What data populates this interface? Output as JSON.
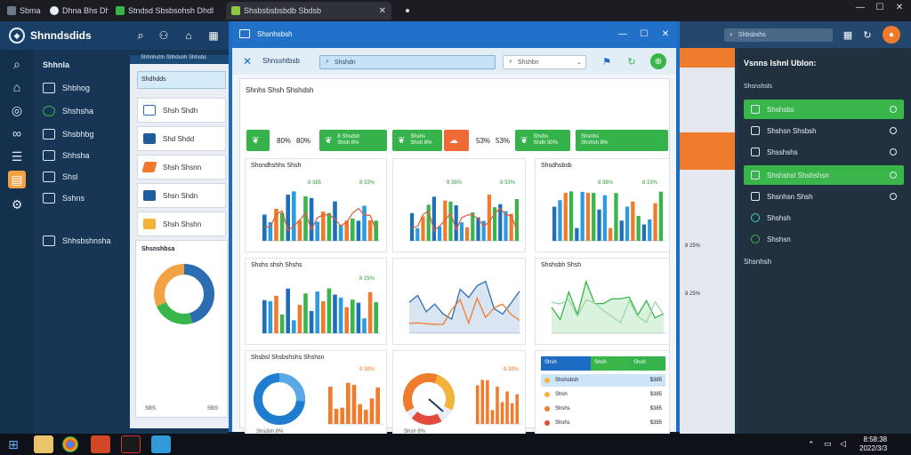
{
  "browser": {
    "tabs": [
      {
        "label": "Sbma"
      },
      {
        "label": "Dhna Bhs Dhdd"
      },
      {
        "label": "Stndsd Sbsbsohsh Dhdl"
      },
      {
        "label": "Shsbsbsbsbdb Sbdsb"
      }
    ]
  },
  "left_app": {
    "brand": "Shnndsdids",
    "section_title": "Shhnla",
    "nav": [
      "Shbhog",
      "Shshsha",
      "Shsbhbg",
      "Shhsha",
      "Shsl",
      "Sshns"
    ],
    "footer_label": "Shhsbshnsha",
    "panel_header": "Shhnhshh Shhdsnh Shhsbs",
    "panel_subheader": "Shdhdds",
    "panel_items": [
      "Shsh Shdh",
      "Shd Shdd",
      "Shsh Shsnn",
      "Shsn Shdn",
      "Shsh Shshn"
    ],
    "donut_title": "Shsnshbsa",
    "footer_values": [
      "SBS",
      "SBS"
    ]
  },
  "main_window": {
    "title": "Shsnhsbsh",
    "toolbar_title": "Shnsshtbsb",
    "search_placeholder": "Shshdn",
    "filter_label": "Shshbn",
    "section_title": "Shnhs Shsh Shshdsh",
    "stats": [
      {
        "label": "80%",
        "sub": "80%",
        "color": "#35b34a"
      },
      {
        "label": "8 Shsdsh",
        "sub": "Shsh 8%",
        "color": "#35b34a"
      },
      {
        "label": "Shshs",
        "sub": "Shsh 8%",
        "color": "#35b34a"
      },
      {
        "label": "53%",
        "sub": "53%",
        "color": "#f06a35"
      },
      {
        "label": "Shshs",
        "sub": "Shdh 50%",
        "color": "#35b34a"
      },
      {
        "label": "Shsnhs",
        "sub": "Shshsh 8%",
        "color": "#35b34a"
      }
    ],
    "charts": {
      "c1": {
        "title": "Shsndhshhs Shsh",
        "legend": [
          "8 385",
          "8 33%"
        ]
      },
      "c2": {
        "title": "",
        "legend": [
          "8 38%",
          "8 33%"
        ]
      },
      "c3": {
        "title": "Shsdhsbsb",
        "legend": [
          "8 38%",
          "8 33%"
        ]
      },
      "c4": {
        "title": "Shshs shsh Shshs",
        "legend": [
          "8 25%"
        ]
      },
      "c5": {
        "title": "",
        "legend": []
      },
      "c6": {
        "title": "Shshsbh Shsh",
        "legend": []
      },
      "c7": {
        "title": "Shsbsl Shsbshshs Shshsn",
        "legend": [
          "8 38%"
        ]
      },
      "c8": {
        "title": "",
        "legend": [
          "8 38%"
        ]
      }
    },
    "donut_caption": "Shsdsh 8%",
    "gauge_caption": "Shsh 8%",
    "table": {
      "header": [
        "Shsh",
        "Shsh",
        "Shsh"
      ],
      "rows": [
        {
          "label": "Shshsbsh",
          "value": "$385"
        },
        {
          "label": "Shsh",
          "value": "$385"
        },
        {
          "label": "Shshs",
          "value": "$385"
        },
        {
          "label": "Shshs",
          "value": "$385"
        }
      ]
    }
  },
  "right_app": {
    "search_placeholder": "Shbsbshs",
    "side_title": "Vsnns Ishnl Ublon:",
    "side_subtitle": "Shsnshsls",
    "items": [
      "Shshsbs",
      "Shshsn Shsbsh",
      "Shsshshs",
      "Shshshsl Shshshsn",
      "Shsnhsn Shsh",
      "Shshsh",
      "Shshsn"
    ],
    "footer": "Shsnhsh",
    "sub_values": [
      "8 25%",
      "8 25%"
    ]
  },
  "taskbar": {
    "time": "8:58:38",
    "date": "2022/3/3"
  }
}
